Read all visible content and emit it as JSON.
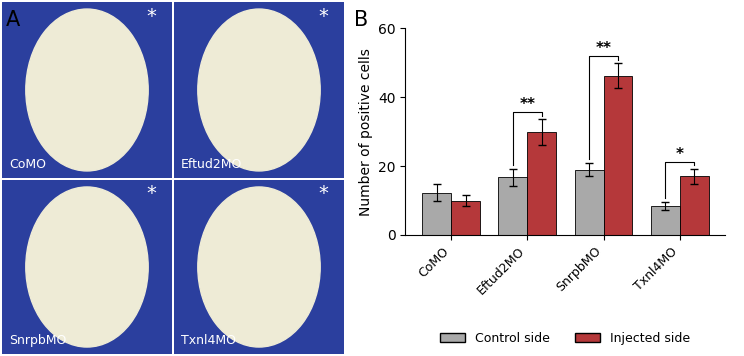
{
  "panel_labels": [
    "A",
    "B"
  ],
  "images": [
    {
      "label": "CoMO",
      "mark": "*"
    },
    {
      "label": "Eftud2MO",
      "mark": "*"
    },
    {
      "label": "SnrpbMO",
      "mark": "*"
    },
    {
      "label": "Txnl4MO",
      "mark": "*"
    }
  ],
  "chart_data": {
    "type": "bar",
    "y_label": "Number of positive cells",
    "categories": [
      "CoMO",
      "Eftud2MO",
      "SnrpbMO",
      "Txnl4MO"
    ],
    "series": [
      {
        "name": "Control side",
        "color": "#a9a9a9",
        "values": [
          12.3,
          16.7,
          19.0,
          8.5
        ],
        "errors": [
          2.5,
          2.6,
          2.0,
          1.2
        ]
      },
      {
        "name": "Injected side",
        "color": "#b5383a",
        "values": [
          10.0,
          29.8,
          46.3,
          17.0
        ],
        "errors": [
          1.5,
          3.8,
          3.6,
          2.3
        ]
      }
    ],
    "significance": [
      null,
      "**",
      "**",
      "*"
    ],
    "ylim": [
      0,
      60
    ],
    "yticks": [
      0,
      20,
      40,
      60
    ],
    "legend": "bottom"
  }
}
